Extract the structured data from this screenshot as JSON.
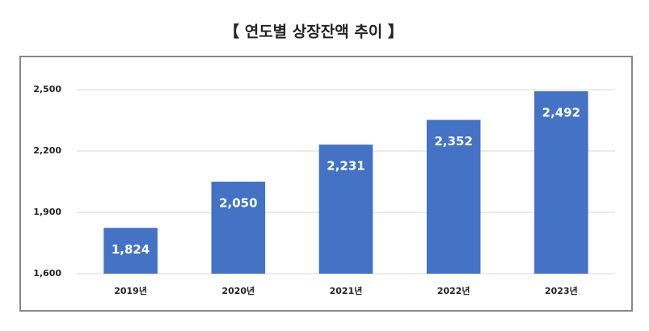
{
  "chart_data": {
    "type": "bar",
    "title": "【 연도별 상장잔액 추이 】",
    "categories": [
      "2019년",
      "2020년",
      "2021년",
      "2022년",
      "2023년"
    ],
    "values": [
      1824,
      2050,
      2231,
      2352,
      2492
    ],
    "value_labels": [
      "1,824",
      "2,050",
      "2,231",
      "2,352",
      "2,492"
    ],
    "color": "#4472c4",
    "ylim": [
      1600,
      2500
    ],
    "yticks": [
      {
        "value": 1600,
        "label": "1,600"
      },
      {
        "value": 1900,
        "label": "1,900"
      },
      {
        "value": 2200,
        "label": "2,200"
      },
      {
        "value": 2500,
        "label": "2,500"
      }
    ],
    "grid": true
  }
}
